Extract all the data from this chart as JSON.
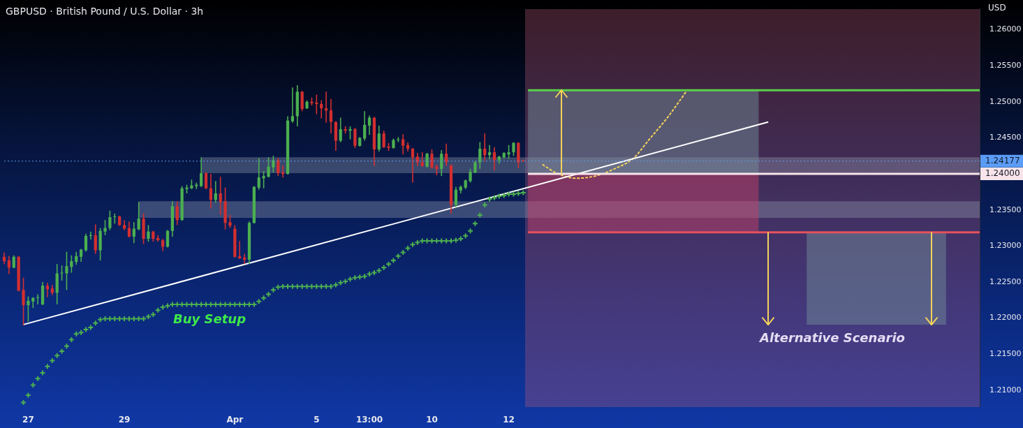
{
  "chart_data": {
    "type": "candlestick",
    "title": "GBPUSD · British Pound / U.S. Dollar · 3h",
    "ylabel": "USD",
    "annotations": [
      "Buy Setup",
      {
        "text": "Alternative Scenario",
        "y": 1.2191
      }
    ],
    "categories": [
      null,
      null,
      null,
      null,
      null,
      "27",
      null,
      null,
      null,
      null,
      null,
      null,
      null,
      null,
      null,
      null,
      null,
      null,
      null,
      null,
      null,
      null,
      null,
      null,
      null,
      "29",
      null,
      null,
      null,
      null,
      null,
      null,
      null,
      null,
      null,
      null,
      null,
      null,
      null,
      null,
      null,
      null,
      null,
      null,
      null,
      null,
      null,
      null,
      "Apr",
      null,
      null,
      null,
      null,
      null,
      null,
      null,
      null,
      null,
      null,
      null,
      null,
      null,
      null,
      null,
      null,
      "5",
      null,
      null,
      null,
      null,
      null,
      null,
      null,
      null,
      null,
      null,
      "13:00",
      null,
      null,
      null,
      null,
      null,
      null,
      null,
      null,
      null,
      null,
      null,
      null,
      "10",
      null,
      null,
      null,
      null,
      null,
      null,
      null,
      null,
      null,
      null,
      null,
      null,
      null,
      null,
      null,
      "12",
      null,
      null,
      null,
      null,
      null,
      null,
      null,
      null,
      null,
      null,
      null,
      null,
      null,
      null,
      null,
      null,
      null,
      null,
      null,
      null,
      null,
      null,
      null,
      null,
      null,
      null,
      null,
      null,
      null,
      null,
      null,
      null,
      null,
      null,
      null,
      null,
      null,
      null,
      null,
      null,
      null,
      null,
      null,
      null,
      null,
      null,
      null,
      null,
      null,
      null,
      null,
      null,
      null,
      null,
      null,
      null,
      null,
      null,
      null,
      null,
      null,
      null,
      null,
      null,
      null,
      null,
      null,
      null,
      null,
      null,
      null,
      null,
      null,
      null,
      null,
      null,
      null,
      null,
      null,
      null,
      null,
      null,
      null,
      null,
      null,
      null,
      null,
      null,
      null,
      null,
      null,
      null,
      null,
      null,
      null,
      null,
      null,
      null
    ],
    "ohlc": [
      [
        1.2285,
        1.2291,
        1.2275,
        1.2279
      ],
      [
        1.228,
        1.2286,
        1.2261,
        1.227
      ],
      [
        1.227,
        1.2287,
        1.2269,
        1.2285
      ],
      [
        1.2285,
        1.2286,
        1.2237,
        1.2238
      ],
      [
        1.2239,
        1.2256,
        1.219,
        1.2218
      ],
      [
        1.2218,
        1.223,
        1.2195,
        1.2224
      ],
      [
        1.2223,
        1.2229,
        1.2214,
        1.2228
      ],
      [
        1.2228,
        1.2233,
        1.2219,
        1.2229
      ],
      [
        1.2219,
        1.225,
        1.2218,
        1.2245
      ],
      [
        1.2245,
        1.2249,
        1.2229,
        1.224
      ],
      [
        1.2241,
        1.2246,
        1.2232,
        1.2235
      ],
      [
        1.2235,
        1.2275,
        1.2219,
        1.2262
      ],
      [
        1.2262,
        1.2273,
        1.2252,
        1.2263
      ],
      [
        1.2262,
        1.2292,
        1.2239,
        1.2272
      ],
      [
        1.2271,
        1.2287,
        1.2263,
        1.2279
      ],
      [
        1.2278,
        1.2292,
        1.2274,
        1.2286
      ],
      [
        1.2285,
        1.2296,
        1.2278,
        1.2295
      ],
      [
        1.2294,
        1.2317,
        1.2292,
        1.2314
      ],
      [
        1.2314,
        1.232,
        1.2309,
        1.2315
      ],
      [
        1.2315,
        1.233,
        1.2289,
        1.2294
      ],
      [
        1.2294,
        1.2325,
        1.228,
        1.2321
      ],
      [
        1.232,
        1.2336,
        1.2315,
        1.2325
      ],
      [
        1.2325,
        1.2349,
        1.2322,
        1.234
      ],
      [
        1.234,
        1.2345,
        1.2331,
        1.2341
      ],
      [
        1.2341,
        1.2342,
        1.2328,
        1.2329
      ],
      [
        1.2329,
        1.2336,
        1.2322,
        1.2324
      ],
      [
        1.2325,
        1.2334,
        1.2312,
        1.2313
      ],
      [
        1.2313,
        1.2333,
        1.2304,
        1.2324
      ],
      [
        1.2323,
        1.2361,
        1.2322,
        1.2338
      ],
      [
        1.2338,
        1.2345,
        1.2303,
        1.231
      ],
      [
        1.231,
        1.2329,
        1.2306,
        1.232
      ],
      [
        1.232,
        1.2321,
        1.2306,
        1.231
      ],
      [
        1.2311,
        1.2315,
        1.2306,
        1.2308
      ],
      [
        1.2308,
        1.231,
        1.2293,
        1.2299
      ],
      [
        1.2299,
        1.2322,
        1.2298,
        1.2321
      ],
      [
        1.2321,
        1.2362,
        1.2313,
        1.2355
      ],
      [
        1.2355,
        1.2362,
        1.2329,
        1.2336
      ],
      [
        1.2336,
        1.2383,
        1.2335,
        1.238
      ],
      [
        1.2379,
        1.2385,
        1.2373,
        1.2381
      ],
      [
        1.238,
        1.2392,
        1.2379,
        1.2384
      ],
      [
        1.2383,
        1.2388,
        1.2379,
        1.2385
      ],
      [
        1.2383,
        1.2423,
        1.2382,
        1.2401
      ],
      [
        1.2401,
        1.2402,
        1.2379,
        1.238
      ],
      [
        1.238,
        1.24,
        1.2352,
        1.2364
      ],
      [
        1.2364,
        1.239,
        1.236,
        1.2373
      ],
      [
        1.2373,
        1.2396,
        1.2343,
        1.2361
      ],
      [
        1.2362,
        1.2381,
        1.2323,
        1.2332
      ],
      [
        1.2333,
        1.2343,
        1.2325,
        1.2328
      ],
      [
        1.2324,
        1.2329,
        1.2284,
        1.2285
      ],
      [
        1.2286,
        1.2307,
        1.2282,
        1.2283
      ],
      [
        1.2284,
        1.2289,
        1.2275,
        1.2281
      ],
      [
        1.2281,
        1.2334,
        1.2275,
        1.2332
      ],
      [
        1.2332,
        1.2383,
        1.2331,
        1.2382
      ],
      [
        1.2381,
        1.2422,
        1.2378,
        1.2395
      ],
      [
        1.2394,
        1.2404,
        1.238,
        1.2397
      ],
      [
        1.2396,
        1.2423,
        1.2395,
        1.241
      ],
      [
        1.2409,
        1.2425,
        1.2402,
        1.2419
      ],
      [
        1.2419,
        1.2422,
        1.2397,
        1.2401
      ],
      [
        1.2402,
        1.2412,
        1.2395,
        1.24
      ],
      [
        1.24,
        1.248,
        1.2399,
        1.2474
      ],
      [
        1.2473,
        1.252,
        1.2471,
        1.248
      ],
      [
        1.248,
        1.2523,
        1.2466,
        1.2514
      ],
      [
        1.2514,
        1.2515,
        1.2487,
        1.249
      ],
      [
        1.2491,
        1.2502,
        1.249,
        1.25
      ],
      [
        1.25,
        1.2506,
        1.2495,
        1.2498
      ],
      [
        1.2499,
        1.251,
        1.2483,
        1.2497
      ],
      [
        1.2497,
        1.2502,
        1.2477,
        1.2491
      ],
      [
        1.2491,
        1.2514,
        1.2471,
        1.2488
      ],
      [
        1.2488,
        1.2504,
        1.2456,
        1.2472
      ],
      [
        1.2472,
        1.2473,
        1.2432,
        1.2446
      ],
      [
        1.2446,
        1.2478,
        1.2444,
        1.2462
      ],
      [
        1.2462,
        1.2466,
        1.2456,
        1.246
      ],
      [
        1.246,
        1.2466,
        1.2448,
        1.2462
      ],
      [
        1.2462,
        1.2464,
        1.2436,
        1.2439
      ],
      [
        1.2439,
        1.2451,
        1.2438,
        1.245
      ],
      [
        1.2449,
        1.2487,
        1.2446,
        1.2468
      ],
      [
        1.2467,
        1.2481,
        1.2454,
        1.2478
      ],
      [
        1.2478,
        1.2479,
        1.2411,
        1.2434
      ],
      [
        1.2434,
        1.2467,
        1.2431,
        1.2456
      ],
      [
        1.2456,
        1.246,
        1.2436,
        1.2437
      ],
      [
        1.2438,
        1.2443,
        1.2432,
        1.2436
      ],
      [
        1.2436,
        1.2449,
        1.2435,
        1.2447
      ],
      [
        1.2447,
        1.2451,
        1.2444,
        1.2448
      ],
      [
        1.2448,
        1.2455,
        1.2427,
        1.2439
      ],
      [
        1.244,
        1.2444,
        1.2431,
        1.2435
      ],
      [
        1.2435,
        1.2436,
        1.2388,
        1.2423
      ],
      [
        1.2424,
        1.2429,
        1.2411,
        1.2416
      ],
      [
        1.2416,
        1.243,
        1.241,
        1.2411
      ],
      [
        1.241,
        1.2429,
        1.2409,
        1.2428
      ],
      [
        1.2428,
        1.2434,
        1.2407,
        1.2409
      ],
      [
        1.241,
        1.2413,
        1.2398,
        1.2407
      ],
      [
        1.2407,
        1.2433,
        1.2397,
        1.2428
      ],
      [
        1.2428,
        1.2442,
        1.2411,
        1.2416
      ],
      [
        1.2412,
        1.2413,
        1.2345,
        1.2357
      ],
      [
        1.2357,
        1.2382,
        1.2354,
        1.2378
      ],
      [
        1.2377,
        1.2384,
        1.2373,
        1.2382
      ],
      [
        1.2381,
        1.2392,
        1.2379,
        1.2391
      ],
      [
        1.239,
        1.2407,
        1.2388,
        1.2403
      ],
      [
        1.2402,
        1.2418,
        1.2401,
        1.2416
      ],
      [
        1.2416,
        1.2444,
        1.2407,
        1.2435
      ],
      [
        1.2435,
        1.2456,
        1.2418,
        1.2426
      ],
      [
        1.2426,
        1.244,
        1.242,
        1.243
      ],
      [
        1.243,
        1.2437,
        1.2405,
        1.2419
      ],
      [
        1.2419,
        1.2425,
        1.2414,
        1.2424
      ],
      [
        1.2423,
        1.243,
        1.2421,
        1.2429
      ],
      [
        1.2427,
        1.244,
        1.2421,
        1.243
      ],
      [
        1.243,
        1.2444,
        1.2425,
        1.2443
      ],
      [
        1.2443,
        1.2444,
        1.2408,
        1.2416
      ],
      [
        1.2419,
        1.242,
        1.2417,
        1.24177
      ],
      null,
      null,
      null,
      null,
      null,
      null,
      null,
      null,
      null,
      null,
      null,
      null,
      null,
      null,
      null,
      null,
      null,
      null,
      null,
      null,
      null,
      null,
      null,
      null,
      null,
      null,
      null,
      null,
      null,
      null,
      null,
      null,
      null,
      null,
      null,
      null,
      null,
      null,
      null,
      null,
      null,
      null,
      null,
      null,
      null,
      null,
      null,
      null,
      null,
      null,
      null,
      null,
      null,
      null,
      null,
      null,
      null,
      null,
      null,
      null,
      null,
      null,
      null,
      null,
      null,
      null,
      null,
      null,
      null,
      null,
      null,
      null,
      null,
      null,
      null,
      null,
      null,
      null,
      null,
      null,
      null,
      null,
      null,
      null,
      null,
      null,
      null,
      null,
      null,
      null,
      null,
      null,
      null,
      null,
      null
    ],
    "series": [
      {
        "type": "scatter",
        "marker": "cross",
        "color": "#4caf50",
        "values": [
          null,
          null,
          null,
          null,
          1.2083,
          1.2093,
          1.2107,
          1.2116,
          1.2124,
          1.2133,
          1.2141,
          1.2148,
          1.2154,
          1.2161,
          1.217,
          1.2178,
          1.218,
          1.2184,
          1.2187,
          1.2193,
          1.2198,
          1.2199,
          1.2199,
          1.2199,
          1.2199,
          1.2199,
          1.2199,
          1.2199,
          1.2199,
          1.2199,
          1.2202,
          1.2205,
          1.2211,
          1.2215,
          1.2217,
          1.2219,
          1.2219,
          1.2219,
          1.2219,
          1.2219,
          1.2219,
          1.2219,
          1.2219,
          1.2219,
          1.2219,
          1.2219,
          1.2219,
          1.2219,
          1.2219,
          1.2219,
          1.2219,
          1.2219,
          1.2219,
          1.2223,
          1.2228,
          1.2233,
          1.2239,
          1.2243,
          1.2244,
          1.2244,
          1.2244,
          1.2244,
          1.2244,
          1.2244,
          1.2244,
          1.2244,
          1.2244,
          1.2244,
          1.2244,
          1.2246,
          1.2249,
          1.2251,
          1.2254,
          1.2256,
          1.2257,
          1.2258,
          1.2261,
          1.2263,
          1.2266,
          1.227,
          1.2275,
          1.228,
          1.2286,
          1.2291,
          1.2297,
          1.2302,
          1.2305,
          1.2307,
          1.2307,
          1.2307,
          1.2307,
          1.2307,
          1.2307,
          1.2307,
          1.2308,
          1.231,
          1.2314,
          1.2321,
          1.2331,
          1.2343,
          1.2357,
          1.2365,
          1.2367,
          1.2369,
          1.237,
          1.2372,
          1.2372,
          1.2373,
          1.2374,
          null,
          null,
          null,
          null,
          null,
          null,
          null,
          null,
          null,
          null,
          null,
          null,
          null,
          null,
          null,
          null,
          null,
          null,
          null,
          null,
          null,
          null,
          null,
          null,
          null,
          null,
          null,
          null,
          null,
          null,
          null,
          null,
          null,
          null,
          null,
          null,
          null,
          null,
          null,
          null,
          null,
          null,
          null,
          null,
          null,
          null,
          null,
          null,
          null,
          null,
          null,
          null,
          null,
          null,
          null,
          null,
          null,
          null,
          null,
          null,
          null,
          null,
          null,
          null,
          null,
          null,
          null,
          null,
          null,
          null,
          null,
          null,
          null,
          null,
          null,
          null,
          null,
          null,
          null,
          null,
          null,
          null,
          null,
          null,
          null,
          null,
          null,
          null,
          null,
          null,
          null,
          null,
          null,
          null,
          null
        ]
      },
      {
        "type": "line",
        "color": "#ffffff",
        "values": [
          null,
          null,
          null,
          null,
          1.2191,
          null,
          null,
          null,
          null,
          null,
          null,
          null,
          null,
          null,
          null,
          null,
          null,
          null,
          null,
          null,
          null,
          null,
          null,
          null,
          null,
          null,
          null,
          null,
          null,
          null,
          null,
          null,
          null,
          null,
          null,
          null,
          null,
          null,
          null,
          null,
          null,
          null,
          null,
          null,
          null,
          null,
          null,
          null,
          null,
          null,
          null,
          null,
          null,
          null,
          null,
          null,
          null,
          null,
          null,
          null,
          null,
          null,
          null,
          null,
          null,
          null,
          null,
          null,
          null,
          null,
          null,
          null,
          null,
          null,
          null,
          null,
          null,
          null,
          null,
          null,
          null,
          null,
          null,
          null,
          null,
          null,
          null,
          null,
          null,
          null,
          null,
          null,
          null,
          null,
          null,
          null,
          null,
          null,
          null,
          null,
          null,
          null,
          null,
          null,
          null,
          null,
          null,
          null,
          null,
          null,
          null,
          null,
          null,
          null,
          null,
          null,
          null,
          null,
          null,
          null,
          null,
          null,
          null,
          null,
          null,
          null,
          null,
          null,
          null,
          null,
          null,
          null,
          null,
          null,
          null,
          null,
          null,
          null,
          null,
          null,
          null,
          null,
          null,
          null,
          null,
          null,
          null,
          null,
          null,
          null,
          null,
          null,
          null,
          null,
          null,
          null,
          null,
          null,
          null,
          1.2472,
          null,
          null,
          null,
          null,
          null,
          null,
          null,
          null,
          null,
          null,
          null,
          null,
          null,
          null,
          null,
          null,
          null,
          null,
          null,
          null,
          null,
          null,
          null,
          null,
          null,
          null,
          null,
          null,
          null,
          null,
          null,
          null,
          null,
          null,
          null,
          null,
          null,
          null,
          null,
          null,
          null,
          null,
          null,
          null
        ]
      },
      {
        "type": "line",
        "line_style": "dashed",
        "color": "#f5d25a",
        "values": [
          null,
          null,
          null,
          null,
          null,
          null,
          null,
          null,
          null,
          null,
          null,
          null,
          null,
          null,
          null,
          null,
          null,
          null,
          null,
          null,
          null,
          null,
          null,
          null,
          null,
          null,
          null,
          null,
          null,
          null,
          null,
          null,
          null,
          null,
          null,
          null,
          null,
          null,
          null,
          null,
          null,
          null,
          null,
          null,
          null,
          null,
          null,
          null,
          null,
          null,
          null,
          null,
          null,
          null,
          null,
          null,
          null,
          null,
          null,
          null,
          null,
          null,
          null,
          null,
          null,
          null,
          null,
          null,
          null,
          null,
          null,
          null,
          null,
          null,
          null,
          null,
          null,
          null,
          null,
          null,
          null,
          null,
          null,
          null,
          null,
          null,
          null,
          null,
          null,
          null,
          null,
          null,
          null,
          null,
          null,
          null,
          null,
          null,
          null,
          null,
          null,
          null,
          null,
          null,
          null,
          null,
          null,
          null,
          null,
          null,
          null,
          null,
          1.2413,
          null,
          null,
          1.2401,
          null,
          null,
          null,
          1.2394,
          null,
          null,
          null,
          1.2397,
          null,
          null,
          null,
          1.2407,
          null,
          null,
          null,
          1.2422,
          null,
          null,
          1.2446,
          null,
          null,
          null,
          1.2478,
          null,
          null,
          null,
          1.2515,
          null,
          null,
          null,
          null,
          null,
          null,
          null,
          null,
          null,
          null,
          null,
          null,
          null,
          null,
          null,
          null,
          null,
          null,
          null,
          null,
          null,
          null,
          null,
          null,
          null,
          null,
          null,
          null,
          null,
          null,
          null,
          null,
          null,
          null,
          null,
          null,
          null,
          null,
          null,
          null,
          null,
          null,
          null,
          null,
          null,
          null,
          null,
          null,
          null,
          null,
          null,
          null,
          null,
          null,
          null,
          null,
          null,
          null,
          null,
          null,
          null
        ]
      }
    ],
    "ref_lines": [
      {
        "axis": "y",
        "value": 1.2516,
        "color": "#5ad14a"
      },
      {
        "axis": "y",
        "value": 1.24,
        "label": "1.24000",
        "color": "#f8e4ea"
      },
      {
        "axis": "y",
        "value": 1.2319,
        "color": "#e5525f"
      },
      {
        "axis": "y",
        "value": 1.24177,
        "label": "1.24177",
        "color": "#5b9cf6",
        "line_style": "dotted"
      }
    ],
    "bands": [
      {
        "axis": "y",
        "from": 1.2401,
        "to": 1.2423,
        "color": "#9aa3b8"
      },
      {
        "axis": "y",
        "from": 1.2339,
        "to": 1.2362,
        "color": "#9aa3b8"
      },
      {
        "axis": "y",
        "from": 1.24,
        "to": 1.2516,
        "color": "#6f8a98"
      },
      {
        "axis": "y",
        "from": 1.2319,
        "to": 1.24,
        "color": "#c0406a"
      },
      {
        "axis": "y",
        "from": 1.2191,
        "to": 1.2319,
        "color": "#6f8a98"
      }
    ],
    "ylim": [
      1.2077,
      1.2629
    ],
    "yticks": [
      {
        "value": 1.21,
        "label": "1.21000"
      },
      {
        "value": 1.215,
        "label": "1.21500"
      },
      {
        "value": 1.22,
        "label": "1.22000"
      },
      {
        "value": 1.225,
        "label": "1.22500"
      },
      {
        "value": 1.23,
        "label": "1.23000"
      },
      {
        "value": 1.235,
        "label": "1.23500"
      },
      {
        "value": 1.245,
        "label": "1.24500"
      },
      {
        "value": 1.25,
        "label": "1.25000"
      },
      {
        "value": 1.255,
        "label": "1.25500"
      },
      {
        "value": 1.26,
        "label": "1.26000"
      }
    ],
    "grid": false,
    "legend": false
  }
}
